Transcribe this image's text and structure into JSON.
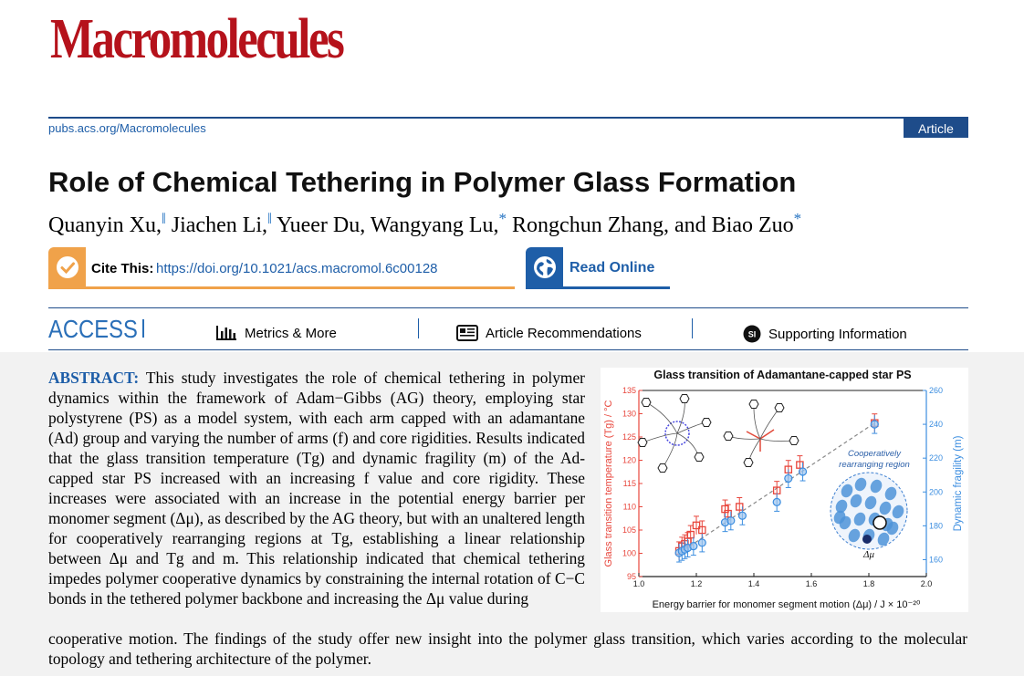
{
  "header": {
    "journal": "Macromolecules",
    "url": "pubs.acs.org/Macromolecules",
    "badge": "Article"
  },
  "article": {
    "title": "Role of Chemical Tethering in Polymer Glass Formation",
    "authors": [
      {
        "name": "Quanyin Xu,",
        "mark": "‖"
      },
      {
        "name": "Jiachen Li,",
        "mark": "‖"
      },
      {
        "name": "Yueer Du,",
        "mark": ""
      },
      {
        "name": "Wangyang Lu,",
        "mark": "*"
      },
      {
        "name": "Rongchun Zhang,",
        "mark": ""
      },
      {
        "name": "and Biao Zuo",
        "mark": "*"
      }
    ]
  },
  "cite": {
    "label": "Cite This:",
    "doi": "https://doi.org/10.1021/acs.macromol.6c00128"
  },
  "read_online": "Read Online",
  "access": {
    "label": "ACCESS",
    "metrics": "Metrics & More",
    "recommendations": "Article Recommendations",
    "supporting": "Supporting Information",
    "si_badge": "SI"
  },
  "abstract": {
    "heading": "ABSTRACT:",
    "body_part1": "This study investigates the role of chemical tethering in polymer dynamics within the framework of Adam−Gibbs (AG) theory, employing star polystyrene (PS) as a model system, with each arm capped with an adamantane (Ad) group and varying the number of arms (f) and core rigidities. Results indicated that the glass transition temperature (Tg) and dynamic fragility (m) of the Ad-capped star PS increased with an increasing f value and core rigidity. These increases were associated with an increase in the potential energy barrier per monomer segment (Δμ), as described by the AG theory, but with an unaltered length for cooperatively rearranging regions at Tg, establishing a linear relationship between Δμ and Tg and m. This relationship indicated that chemical tethering impedes polymer cooperative dynamics by constraining the internal rotation of C−C bonds in the tethered polymer backbone and increasing the Δμ value during",
    "body_part2": "cooperative motion. The findings of the study offer new insight into the polymer glass transition, which varies according to the molecular topology and tethering architecture of the polymer."
  },
  "chart_data": {
    "type": "scatter",
    "title": "Glass transition of Adamantane-capped star PS",
    "xlabel": "Energy barrier for monomer segment motion (Δμ) / J × 10⁻²⁰",
    "ylabel_left": "Glass transition temperature (Tg) / °C",
    "ylabel_right": "Dynamic fragility (m)",
    "xlim": [
      1.0,
      2.0
    ],
    "ylim_left": [
      95,
      135
    ],
    "ylim_right": [
      150,
      260
    ],
    "x_ticks": [
      "1.0",
      "1.2",
      "1.4",
      "1.6",
      "1.8",
      "2.0"
    ],
    "y_left_ticks": [
      "95",
      "100",
      "105",
      "110",
      "115",
      "120",
      "125",
      "130",
      "135"
    ],
    "y_right_ticks": [
      "160",
      "180",
      "200",
      "220",
      "240",
      "260"
    ],
    "annotation": "Cooperatively rearranging region",
    "inset_label": "Δμ",
    "colors": {
      "tg": "#e8463c",
      "fragility": "#3c8ee0",
      "trend": "#888888",
      "title": "#111111"
    },
    "series": [
      {
        "name": "Tg",
        "points": [
          [
            1.14,
            100.5
          ],
          [
            1.15,
            101.5
          ],
          [
            1.16,
            102
          ],
          [
            1.17,
            102.5
          ],
          [
            1.18,
            104
          ],
          [
            1.2,
            106
          ],
          [
            1.22,
            105
          ],
          [
            1.3,
            109.5
          ],
          [
            1.31,
            108.5
          ],
          [
            1.35,
            110
          ],
          [
            1.48,
            113.5
          ],
          [
            1.52,
            118
          ],
          [
            1.56,
            119
          ],
          [
            1.82,
            128
          ]
        ]
      },
      {
        "name": "m",
        "points": [
          [
            1.14,
            164
          ],
          [
            1.15,
            165
          ],
          [
            1.16,
            166
          ],
          [
            1.17,
            167
          ],
          [
            1.19,
            168
          ],
          [
            1.22,
            170
          ],
          [
            1.3,
            182
          ],
          [
            1.32,
            183
          ],
          [
            1.36,
            186
          ],
          [
            1.48,
            194
          ],
          [
            1.52,
            208
          ],
          [
            1.57,
            212
          ],
          [
            1.82,
            240
          ]
        ]
      }
    ]
  }
}
